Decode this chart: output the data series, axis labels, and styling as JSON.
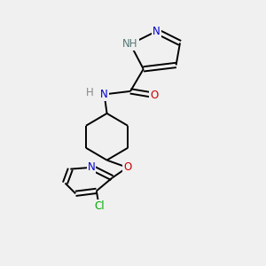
{
  "background_color": "#f0f0f0",
  "bond_color": "#000000",
  "figsize": [
    3.0,
    3.0
  ],
  "dpi": 100,
  "label_colors": {
    "N": "#0000cc",
    "NH_pyrazole": "#557777",
    "O": "#cc0000",
    "Cl": "#00aa00",
    "H_amide": "#888888"
  },
  "lw": 1.4
}
